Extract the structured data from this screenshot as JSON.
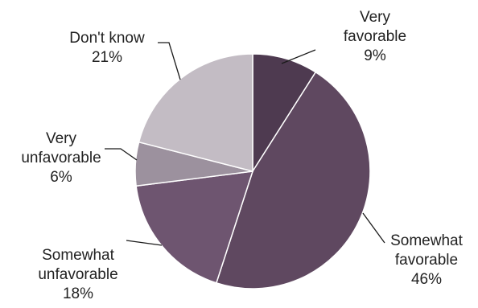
{
  "chart_data": {
    "type": "pie",
    "start_angle_deg": 0,
    "direction": "clockwise",
    "legend": "none",
    "slices": [
      {
        "name": "very-favorable",
        "lines": [
          "Very",
          "favorable"
        ],
        "value": 9,
        "value_label": "9%",
        "color": "#4e3a50"
      },
      {
        "name": "somewhat-favorable",
        "lines": [
          "Somewhat",
          "favorable"
        ],
        "value": 46,
        "value_label": "46%",
        "color": "#5f4860"
      },
      {
        "name": "somewhat-unfavorable",
        "lines": [
          "Somewhat",
          "unfavorable"
        ],
        "value": 18,
        "value_label": "18%",
        "color": "#6e5570"
      },
      {
        "name": "very-unfavorable",
        "lines": [
          "Very",
          "unfavorable"
        ],
        "value": 6,
        "value_label": "6%",
        "color": "#9c919e"
      },
      {
        "name": "dont-know",
        "lines": [
          "Don't know"
        ],
        "value": 21,
        "value_label": "21%",
        "color": "#c3bcc4"
      }
    ]
  }
}
